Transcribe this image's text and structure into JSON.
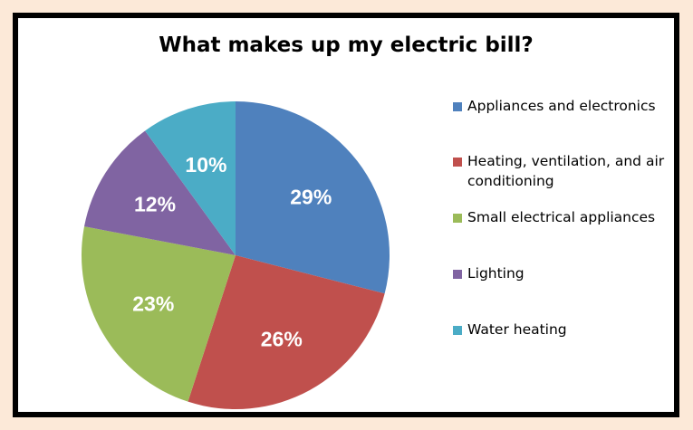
{
  "chart_data": {
    "type": "pie",
    "title": "What makes up my electric bill?",
    "slices": [
      {
        "name": "Appliances and electronics",
        "value": 29,
        "label": "29%",
        "color": "#4f81bd"
      },
      {
        "name": "Heating, ventilation, and air conditioning",
        "value": 26,
        "label": "26%",
        "color": "#c0504d"
      },
      {
        "name": "Small electrical appliances",
        "value": 23,
        "label": "23%",
        "color": "#9bbb59"
      },
      {
        "name": "Lighting",
        "value": 12,
        "label": "12%",
        "color": "#8064a2"
      },
      {
        "name": "Water heating",
        "value": 10,
        "label": "10%",
        "color": "#4bacc6"
      }
    ],
    "legend_position": "right"
  },
  "colors": {
    "page_background": "#fce9d8",
    "frame": "#000000",
    "plot_background": "#ffffff"
  }
}
